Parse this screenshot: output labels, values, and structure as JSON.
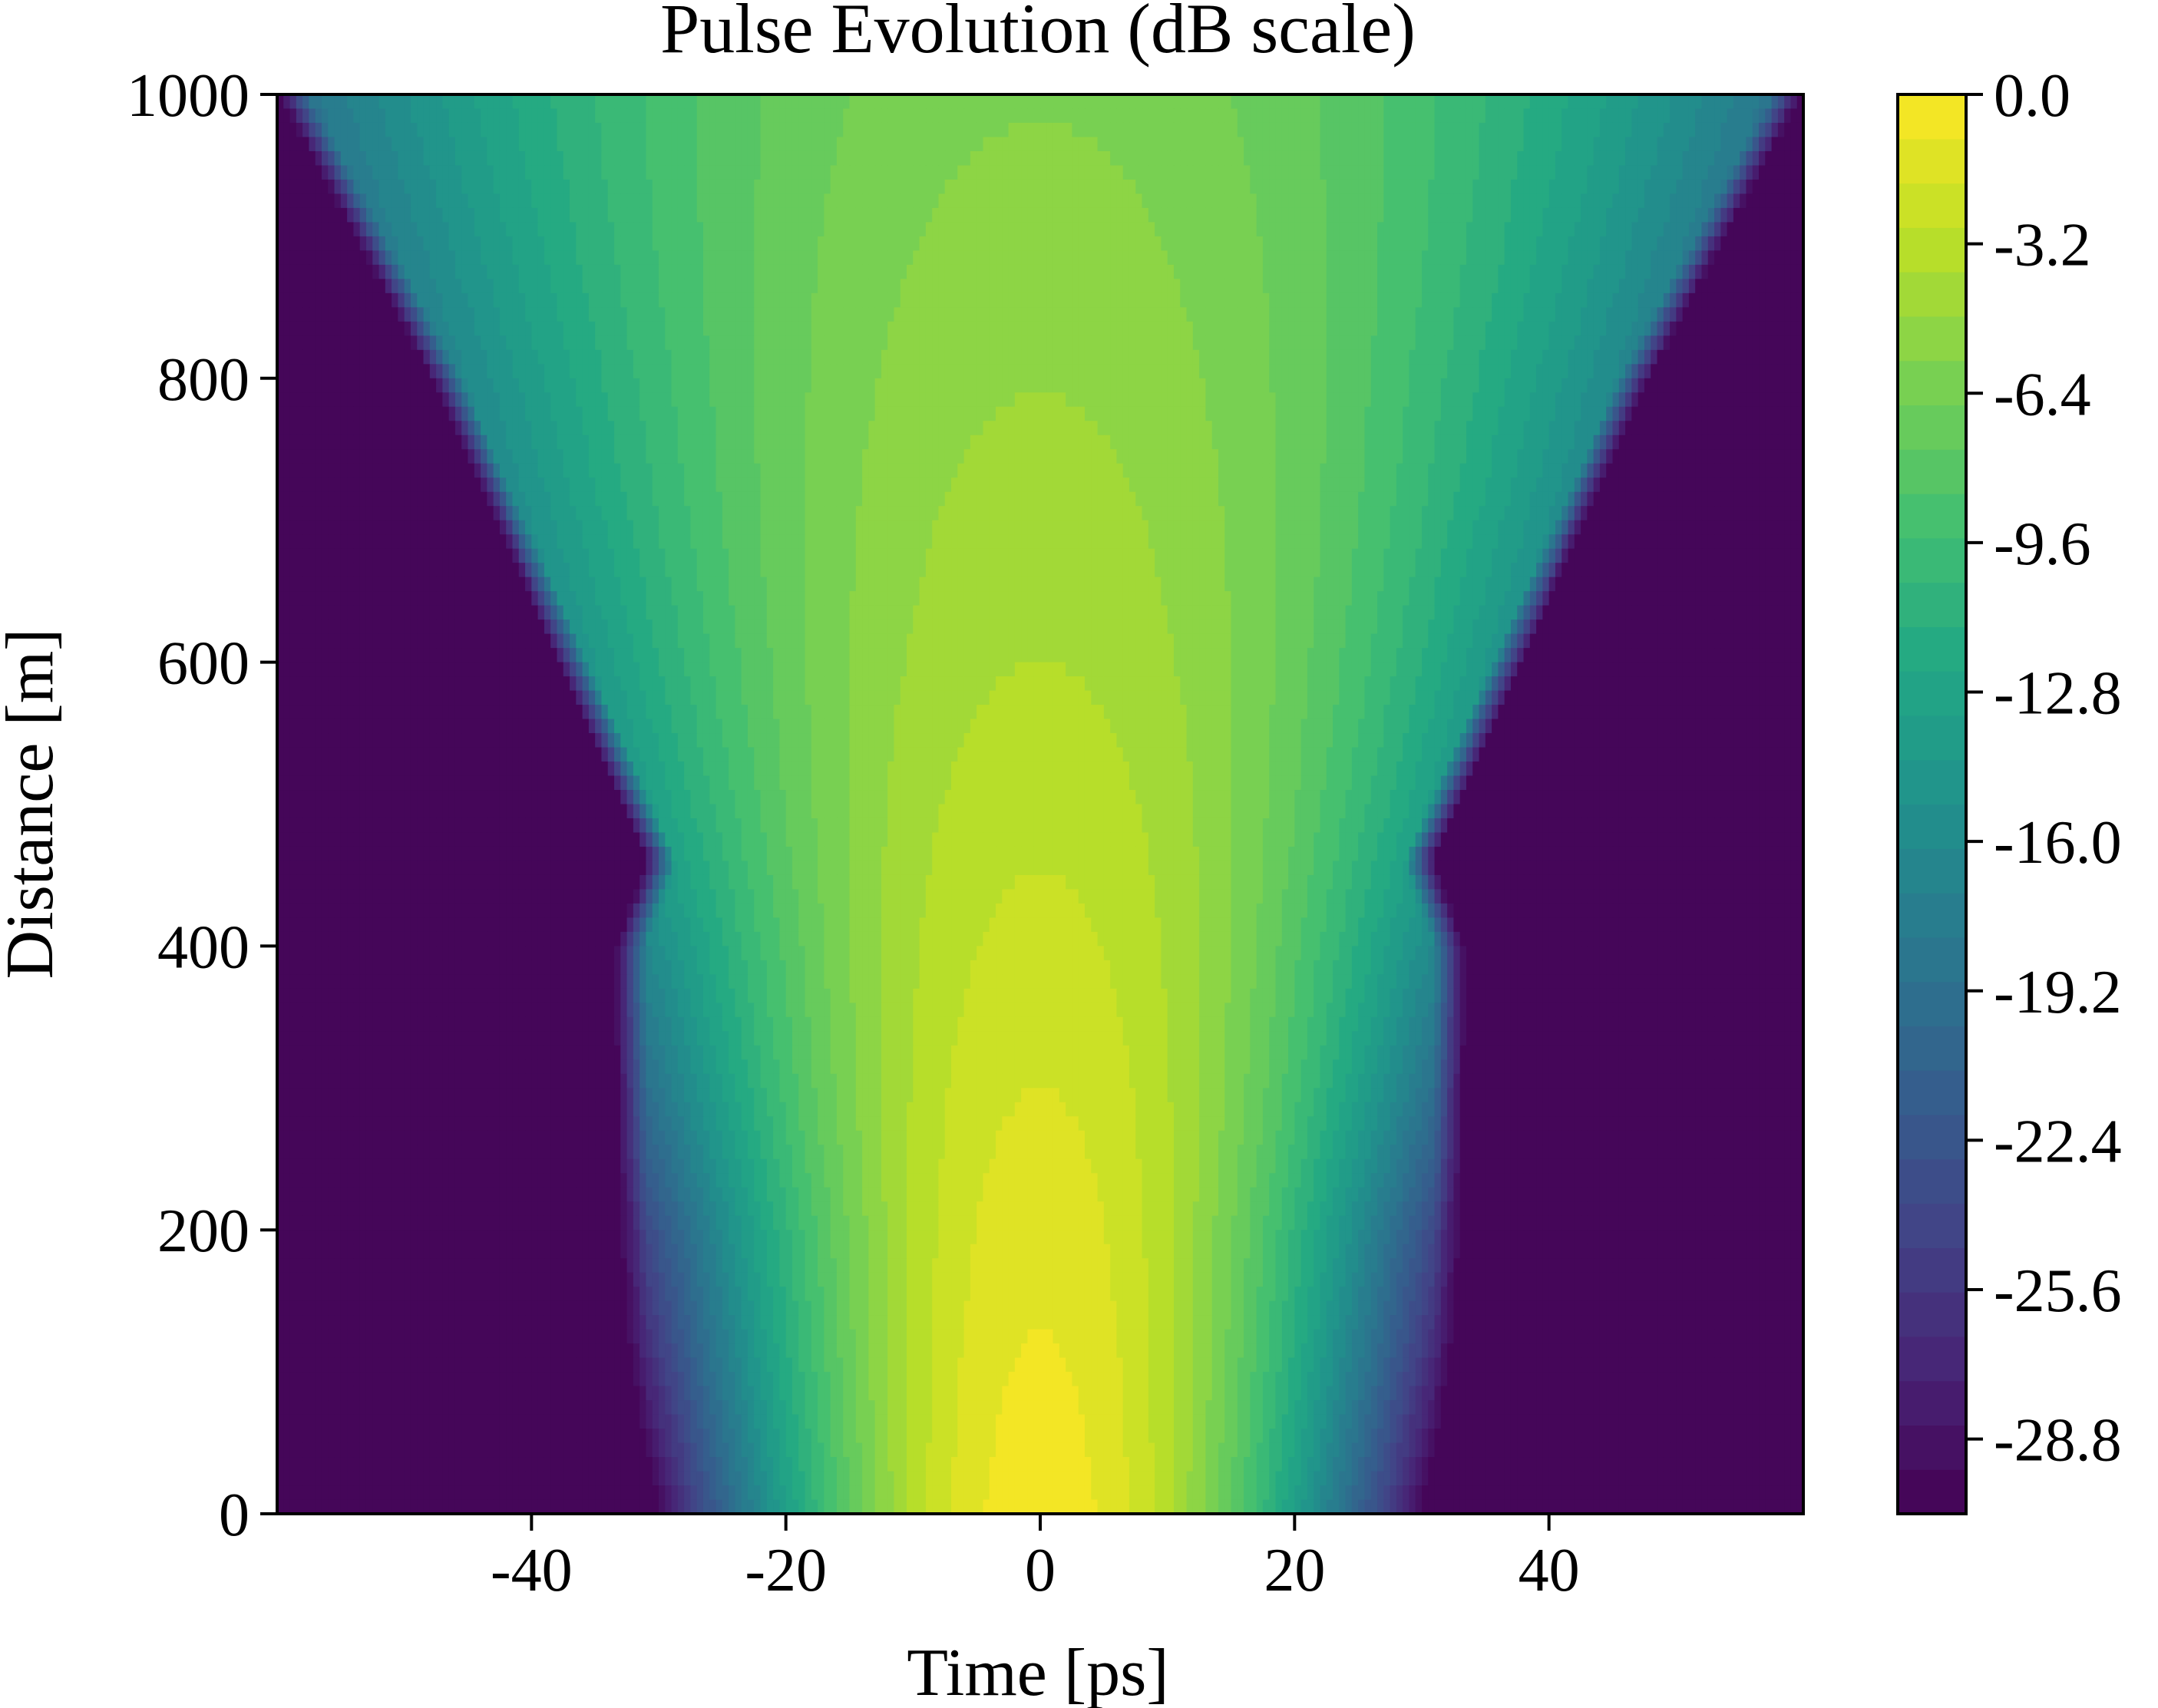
{
  "chart_data": {
    "type": "heatmap",
    "title": "Pulse Evolution (dB scale)",
    "xlabel": "Time [ps]",
    "ylabel": "Distance [m]",
    "xlim": [
      -60,
      60
    ],
    "ylim": [
      0,
      1000
    ],
    "x_ticks": [
      -40,
      -20,
      0,
      20,
      40
    ],
    "x_tick_labels": [
      "-40",
      "-20",
      "0",
      "20",
      "40"
    ],
    "y_ticks": [
      0,
      200,
      400,
      600,
      800,
      1000
    ],
    "y_tick_labels": [
      "0",
      "200",
      "400",
      "600",
      "800",
      "1000"
    ],
    "colorbar": {
      "min": -30.4,
      "max": 0.0,
      "levels": 32,
      "colormap": "viridis",
      "ticks": [
        0.0,
        -3.2,
        -6.4,
        -9.6,
        -12.8,
        -16.0,
        -19.2,
        -22.4,
        -25.6,
        -28.8
      ],
      "tick_labels": [
        "0.0",
        "-3.2",
        "-6.4",
        "-9.6",
        "-12.8",
        "-16.0",
        "-19.2",
        "-22.4",
        "-25.6",
        "-28.8"
      ]
    },
    "grid": false,
    "field": {
      "distance_m": [
        0,
        200,
        400,
        460,
        600,
        800,
        1000
      ],
      "half_width_ps_at_floor": [
        33.5,
        33.5,
        33.5,
        31.0,
        38.0,
        48.0,
        60.0
      ],
      "gaussian_width_ps": [
        11.5,
        13.6,
        17.3,
        18.8,
        22.6,
        27.9,
        33.8
      ],
      "peak_db": [
        -0.3,
        -1.3,
        -2.5,
        -2.9,
        -3.8,
        -4.8,
        -5.8
      ]
    }
  }
}
